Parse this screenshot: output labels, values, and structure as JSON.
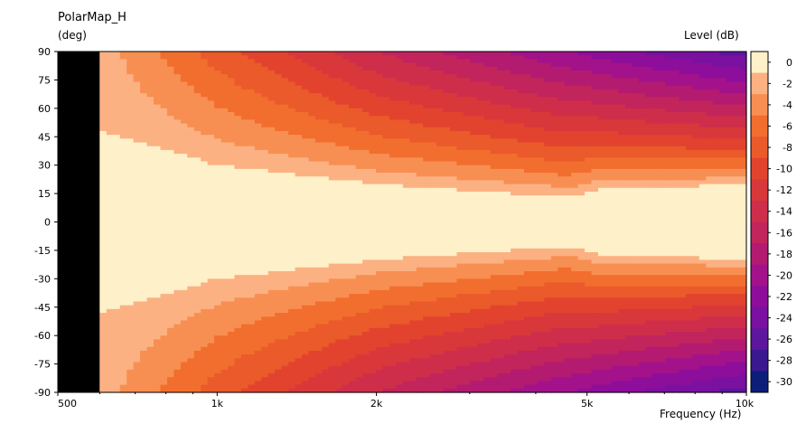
{
  "chart_data": {
    "type": "heatmap",
    "title": "PolarMap_H",
    "ylabel": "(deg)",
    "xlabel": "Frequency  (Hz)",
    "colorbar_label": "Level  (dB)",
    "x_scale": "log",
    "xlim": [
      500,
      10000
    ],
    "ylim": [
      -90,
      90
    ],
    "x_ticks": [
      {
        "value": 500,
        "label": "500"
      },
      {
        "value": 1000,
        "label": "1k"
      },
      {
        "value": 2000,
        "label": "2k"
      },
      {
        "value": 5000,
        "label": "5k"
      },
      {
        "value": 10000,
        "label": "10k"
      }
    ],
    "y_ticks": [
      90,
      75,
      60,
      45,
      30,
      15,
      0,
      -15,
      -30,
      -45,
      -60,
      -75,
      -90
    ],
    "no_data_below_hz": 600,
    "contour_step_db": 2,
    "color_levels": [
      {
        "level": 0,
        "label": "0",
        "color": "#fef0c8"
      },
      {
        "level": -2,
        "label": "-2",
        "color": "#fcb183"
      },
      {
        "level": -4,
        "label": "-4",
        "color": "#f88f52"
      },
      {
        "level": -6,
        "label": "-6",
        "color": "#f26e2e"
      },
      {
        "level": -8,
        "label": "-8",
        "color": "#ea5a2a"
      },
      {
        "level": -10,
        "label": "-10",
        "color": "#e2432e"
      },
      {
        "level": -12,
        "label": "-12",
        "color": "#d9383b"
      },
      {
        "level": -14,
        "label": "-14",
        "color": "#cf2e4b"
      },
      {
        "level": -16,
        "label": "-16",
        "color": "#c2245c"
      },
      {
        "level": -18,
        "label": "-18",
        "color": "#b31b70"
      },
      {
        "level": -20,
        "label": "-20",
        "color": "#a3128a"
      },
      {
        "level": -22,
        "label": "-22",
        "color": "#8d0e9a"
      },
      {
        "level": -24,
        "label": "-24",
        "color": "#7a11a0"
      },
      {
        "level": -26,
        "label": "-26",
        "color": "#5d169e"
      },
      {
        "level": -28,
        "label": "-28",
        "color": "#3a188f"
      },
      {
        "level": -30,
        "label": "-30",
        "color": "#0c1e78"
      }
    ],
    "series": [
      {
        "freq_hz": 600,
        "level_db_at_90deg": -3
      },
      {
        "freq_hz": 1000,
        "level_db_at_90deg": -9
      },
      {
        "freq_hz": 2000,
        "level_db_at_90deg": -16
      },
      {
        "freq_hz": 4600,
        "level_db_at_90deg": -22
      },
      {
        "freq_hz": 10000,
        "level_db_at_90deg": -27
      }
    ],
    "minus2db_beamwidth_half_deg": [
      {
        "freq_hz": 600,
        "angle": 48
      },
      {
        "freq_hz": 1000,
        "angle": 30
      },
      {
        "freq_hz": 2000,
        "angle": 20
      },
      {
        "freq_hz": 4600,
        "angle": 13
      },
      {
        "freq_hz": 5200,
        "angle": 17
      },
      {
        "freq_hz": 10000,
        "angle": 20
      }
    ]
  }
}
